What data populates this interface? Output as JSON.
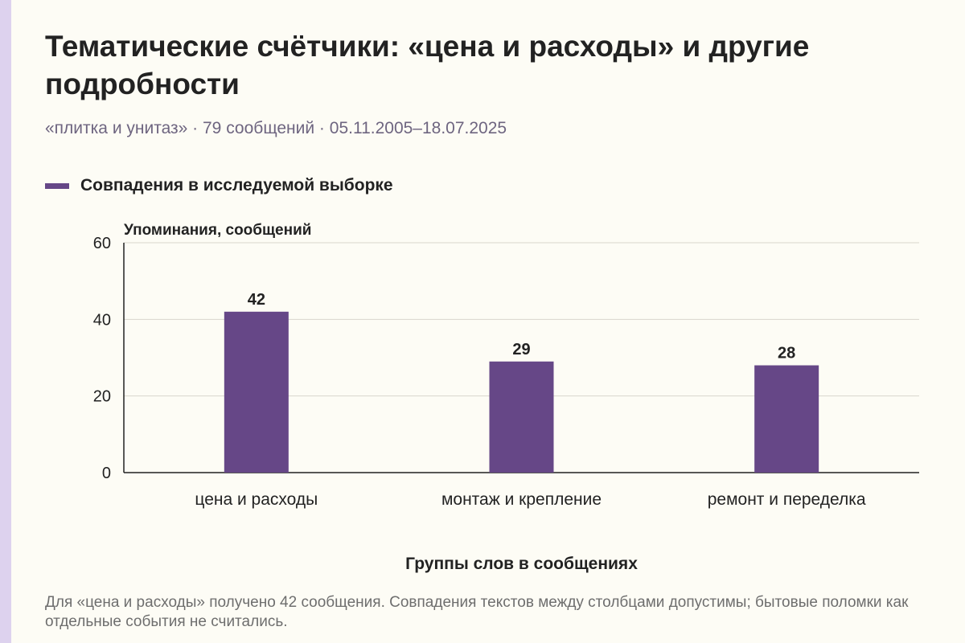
{
  "page": {
    "title": "Тематические счётчики: «цена и расходы» и другие подробности",
    "subtitle": "«плитка и унитаз» · 79 сообщений · 05.11.2005–18.07.2025",
    "footnote": "Для «цена и расходы» получено 42 сообщения. Совпадения текстов между столбцами допустимы; бытовые поломки как отдельные события не считались."
  },
  "colors": {
    "bar": "#664787",
    "grid": "#d9d6cc",
    "axis": "#222222",
    "text": "#222222",
    "accent_strip": "#ddd2ee"
  },
  "chart_data": {
    "type": "bar",
    "categories": [
      "цена и расходы",
      "монтаж и крепление",
      "ремонт и переделка"
    ],
    "series": [
      {
        "name": "Совпадения в исследуемой выборке",
        "values": [
          42,
          29,
          28
        ]
      }
    ],
    "data_labels": [
      "42",
      "29",
      "28"
    ],
    "ylabel": "Упоминания, сообщений",
    "xlabel": "Группы слов в сообщениях",
    "ylim": [
      0,
      60
    ],
    "yticks": [
      0,
      20,
      40,
      60
    ],
    "grid": true,
    "legend_position": "top-left"
  }
}
